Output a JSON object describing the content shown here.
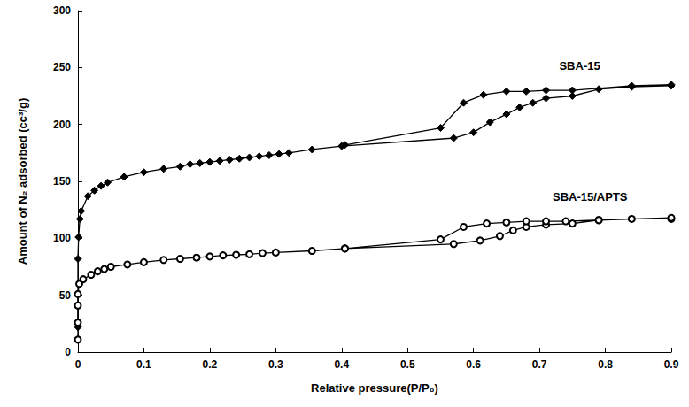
{
  "chart_data": {
    "type": "line",
    "x_label": "Relative pressure(P/P₀)",
    "y_label": "Amount of N₂ adsorbed (cc³/g)",
    "xlim": [
      0,
      0.9
    ],
    "xticks": [
      0,
      0.1,
      0.2,
      0.3,
      0.4,
      0.5,
      0.6,
      0.7,
      0.8,
      0.9
    ],
    "ylim": [
      0,
      300
    ],
    "yticks": [
      0,
      50,
      100,
      150,
      200,
      250,
      300
    ],
    "grid": false,
    "series": [
      {
        "name": "SBA-15",
        "color": "#000000",
        "marker": "diamond",
        "line_style": "solid",
        "x": [
          0,
          0,
          0.001,
          0.003,
          0.005,
          0.015,
          0.025,
          0.035,
          0.045,
          0.07,
          0.1,
          0.13,
          0.155,
          0.17,
          0.185,
          0.2,
          0.215,
          0.23,
          0.245,
          0.26,
          0.275,
          0.29,
          0.305,
          0.32,
          0.355,
          0.4,
          0.57,
          0.6,
          0.625,
          0.65,
          0.67,
          0.69,
          0.71,
          0.75,
          0.79,
          0.84,
          0.9,
          0.9,
          0.84,
          0.75,
          0.71,
          0.68,
          0.65,
          0.615,
          0.585,
          0.55,
          0.405
        ],
        "values": [
          22,
          82,
          101,
          117,
          124,
          137,
          142,
          146,
          149,
          154,
          158,
          161,
          163,
          165,
          166,
          167,
          168,
          169,
          170,
          171,
          172,
          173,
          174,
          175,
          178,
          181,
          188,
          193,
          202,
          209,
          215,
          219,
          223,
          225,
          231,
          233,
          234,
          235,
          234,
          230,
          230,
          229,
          229,
          226,
          219,
          197,
          182
        ]
      },
      {
        "name": "SBA-15/APTS",
        "color": "#000000",
        "marker": "open_circle",
        "line_style": "solid",
        "x": [
          0,
          0,
          0,
          0,
          0.002,
          0.008,
          0.02,
          0.03,
          0.04,
          0.05,
          0.075,
          0.1,
          0.13,
          0.155,
          0.18,
          0.2,
          0.22,
          0.24,
          0.26,
          0.28,
          0.3,
          0.355,
          0.405,
          0.57,
          0.61,
          0.64,
          0.66,
          0.68,
          0.71,
          0.75,
          0.79,
          0.84,
          0.9,
          0.9,
          0.79,
          0.74,
          0.71,
          0.68,
          0.65,
          0.62,
          0.585,
          0.55,
          0.405
        ],
        "values": [
          11,
          26,
          41,
          51,
          60,
          64,
          68,
          71,
          73,
          75,
          77,
          79,
          81,
          82,
          83,
          84,
          85,
          85.5,
          86,
          87,
          87.5,
          89,
          91,
          95,
          98,
          102,
          107,
          110,
          112,
          113,
          116,
          117,
          117,
          118,
          116,
          115,
          115,
          115,
          114,
          113,
          110,
          99,
          91
        ]
      }
    ],
    "annotations": [
      {
        "text": "SBA-15",
        "x": 0.73,
        "y": 250
      },
      {
        "text": "SBA-15/APTS",
        "x": 0.72,
        "y": 135
      }
    ]
  }
}
